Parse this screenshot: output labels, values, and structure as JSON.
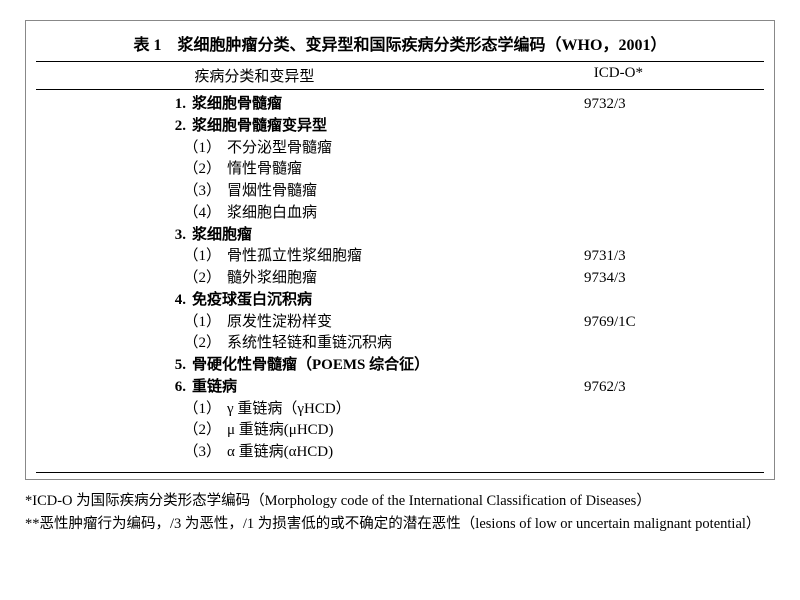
{
  "title": "表 1 浆细胞肿瘤分类、变异型和国际疾病分类形态学编码（WHO，2001）",
  "header": {
    "left": "疾病分类和变异型",
    "right": "ICD-O*"
  },
  "rows": [
    {
      "type": "main",
      "num": "1.",
      "label": "浆细胞骨髓瘤",
      "code": "9732/3"
    },
    {
      "type": "main",
      "num": "2.",
      "label": "浆细胞骨髓瘤变异型",
      "code": ""
    },
    {
      "type": "sub",
      "num": "（1）",
      "label": "不分泌型骨髓瘤",
      "code": ""
    },
    {
      "type": "sub",
      "num": "（2）",
      "label": "惰性骨髓瘤",
      "code": ""
    },
    {
      "type": "sub",
      "num": "（3）",
      "label": "冒烟性骨髓瘤",
      "code": ""
    },
    {
      "type": "sub",
      "num": "（4）",
      "label": "浆细胞白血病",
      "code": ""
    },
    {
      "type": "main",
      "num": "3.",
      "label": "浆细胞瘤",
      "code": ""
    },
    {
      "type": "sub",
      "num": "（1）",
      "label": "骨性孤立性浆细胞瘤",
      "code": "9731/3"
    },
    {
      "type": "sub",
      "num": "（2）",
      "label": "髓外浆细胞瘤",
      "code": "9734/3"
    },
    {
      "type": "main",
      "num": "4.",
      "label": "免疫球蛋白沉积病",
      "code": ""
    },
    {
      "type": "sub",
      "num": "（1）",
      "label": "原发性淀粉样变",
      "code": "9769/1C"
    },
    {
      "type": "sub",
      "num": "（2）",
      "label": "系统性轻链和重链沉积病",
      "code": ""
    },
    {
      "type": "main",
      "num": "5.",
      "label": "骨硬化性骨髓瘤（POEMS 综合征）",
      "code": ""
    },
    {
      "type": "main",
      "num": "6.",
      "label": "重链病",
      "code": "9762/3"
    },
    {
      "type": "sub",
      "num": "（1）",
      "label": "γ 重链病（γHCD）",
      "code": ""
    },
    {
      "type": "sub",
      "num": "（2）",
      "label": "μ 重链病(μHCD)",
      "code": ""
    },
    {
      "type": "sub",
      "num": "（3）",
      "label": "α 重链病(αHCD)",
      "code": ""
    }
  ],
  "footnotes": [
    "*ICD-O 为国际疾病分类形态学编码（Morphology code of the International Classification of Diseases）",
    "**恶性肿瘤行为编码，/3 为恶性，/1 为损害低的或不确定的潜在恶性（lesions of low or uncertain malignant potential）"
  ]
}
